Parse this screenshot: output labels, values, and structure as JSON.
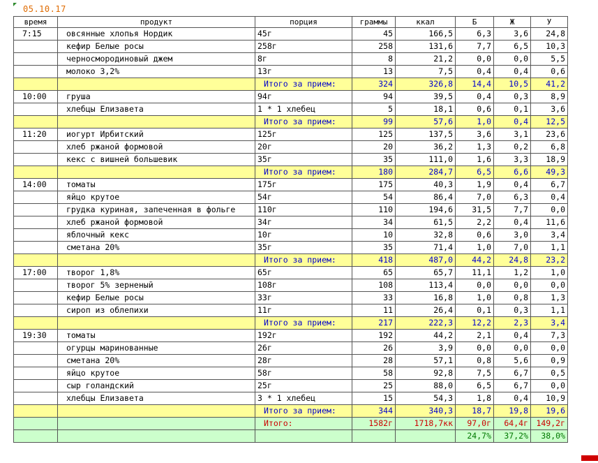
{
  "sheet": {
    "date": "05.10.17",
    "headers": [
      "время",
      "продукт",
      "порция",
      "граммы",
      "ккал",
      "Б",
      "Ж",
      "У"
    ],
    "subtotal_label": "Итого за прием:",
    "meals": [
      {
        "time": "7:15",
        "items": [
          {
            "product": "овсянные хлопья Нордик",
            "portion": "45г",
            "grams": "45",
            "kcal": "166,5",
            "b": "6,3",
            "zh": "3,6",
            "u": "24,8"
          },
          {
            "product": "кефир Белые росы",
            "portion": "258г",
            "grams": "258",
            "kcal": "131,6",
            "b": "7,7",
            "zh": "6,5",
            "u": "10,3"
          },
          {
            "product": "черносмородиновый джем",
            "portion": "8г",
            "grams": "8",
            "kcal": "21,2",
            "b": "0,0",
            "zh": "0,0",
            "u": "5,5"
          },
          {
            "product": "молоко 3,2%",
            "portion": "13г",
            "grams": "13",
            "kcal": "7,5",
            "b": "0,4",
            "zh": "0,4",
            "u": "0,6"
          }
        ],
        "total": {
          "grams": "324",
          "kcal": "326,8",
          "b": "14,4",
          "zh": "10,5",
          "u": "41,2"
        }
      },
      {
        "time": "10:00",
        "items": [
          {
            "product": "груша",
            "portion": "94г",
            "grams": "94",
            "kcal": "39,5",
            "b": "0,4",
            "zh": "0,3",
            "u": "8,9"
          },
          {
            "product": "хлебцы Елизавета",
            "portion": "1 * 1 хлебец",
            "grams": "5",
            "kcal": "18,1",
            "b": "0,6",
            "zh": "0,1",
            "u": "3,6"
          }
        ],
        "total": {
          "grams": "99",
          "kcal": "57,6",
          "b": "1,0",
          "zh": "0,4",
          "u": "12,5"
        }
      },
      {
        "time": "11:20",
        "items": [
          {
            "product": "иогурт Ирбитский",
            "portion": "125г",
            "grams": "125",
            "kcal": "137,5",
            "b": "3,6",
            "zh": "3,1",
            "u": "23,6"
          },
          {
            "product": "хлеб ржаной формовой",
            "portion": "20г",
            "grams": "20",
            "kcal": "36,2",
            "b": "1,3",
            "zh": "0,2",
            "u": "6,8"
          },
          {
            "product": "кекс с вишней большевик",
            "portion": "35г",
            "grams": "35",
            "kcal": "111,0",
            "b": "1,6",
            "zh": "3,3",
            "u": "18,9"
          }
        ],
        "total": {
          "grams": "180",
          "kcal": "284,7",
          "b": "6,5",
          "zh": "6,6",
          "u": "49,3"
        }
      },
      {
        "time": "14:00",
        "items": [
          {
            "product": "томаты",
            "portion": "175г",
            "grams": "175",
            "kcal": "40,3",
            "b": "1,9",
            "zh": "0,4",
            "u": "6,7"
          },
          {
            "product": "яйцо крутое",
            "portion": "54г",
            "grams": "54",
            "kcal": "86,4",
            "b": "7,0",
            "zh": "6,3",
            "u": "0,4"
          },
          {
            "product": "грудка куриная, запеченная в фольге",
            "portion": "110г",
            "grams": "110",
            "kcal": "194,6",
            "b": "31,5",
            "zh": "7,7",
            "u": "0,0"
          },
          {
            "product": "хлеб ржаной формовой",
            "portion": "34г",
            "grams": "34",
            "kcal": "61,5",
            "b": "2,2",
            "zh": "0,4",
            "u": "11,6"
          },
          {
            "product": "яблочный кекс",
            "portion": "10г",
            "grams": "10",
            "kcal": "32,8",
            "b": "0,6",
            "zh": "3,0",
            "u": "3,4"
          },
          {
            "product": "сметана 20%",
            "portion": "35г",
            "grams": "35",
            "kcal": "71,4",
            "b": "1,0",
            "zh": "7,0",
            "u": "1,1"
          }
        ],
        "total": {
          "grams": "418",
          "kcal": "487,0",
          "b": "44,2",
          "zh": "24,8",
          "u": "23,2"
        }
      },
      {
        "time": "17:00",
        "items": [
          {
            "product": "творог 1,8%",
            "portion": "65г",
            "grams": "65",
            "kcal": "65,7",
            "b": "11,1",
            "zh": "1,2",
            "u": "1,0"
          },
          {
            "product": "творог 5% зерненый",
            "portion": "108г",
            "grams": "108",
            "kcal": "113,4",
            "b": "0,0",
            "zh": "0,0",
            "u": "0,0"
          },
          {
            "product": "кефир Белые росы",
            "portion": "33г",
            "grams": "33",
            "kcal": "16,8",
            "b": "1,0",
            "zh": "0,8",
            "u": "1,3"
          },
          {
            "product": "сироп из облепихи",
            "portion": "11г",
            "grams": "11",
            "kcal": "26,4",
            "b": "0,1",
            "zh": "0,3",
            "u": "1,1"
          }
        ],
        "total": {
          "grams": "217",
          "kcal": "222,3",
          "b": "12,2",
          "zh": "2,3",
          "u": "3,4"
        }
      },
      {
        "time": "19:30",
        "items": [
          {
            "product": "томаты",
            "portion": "192г",
            "grams": "192",
            "kcal": "44,2",
            "b": "2,1",
            "zh": "0,4",
            "u": "7,3"
          },
          {
            "product": "огурцы маринованные",
            "portion": "26г",
            "grams": "26",
            "kcal": "3,9",
            "b": "0,0",
            "zh": "0,0",
            "u": "0,0"
          },
          {
            "product": "сметана 20%",
            "portion": "28г",
            "grams": "28",
            "kcal": "57,1",
            "b": "0,8",
            "zh": "5,6",
            "u": "0,9"
          },
          {
            "product": "яйцо крутое",
            "portion": "58г",
            "grams": "58",
            "kcal": "92,8",
            "b": "7,5",
            "zh": "6,7",
            "u": "0,5"
          },
          {
            "product": "сыр голандский",
            "portion": "25г",
            "grams": "25",
            "kcal": "88,0",
            "b": "6,5",
            "zh": "6,7",
            "u": "0,0"
          },
          {
            "product": "хлебцы Елизавета",
            "portion": "3 * 1 хлебец",
            "grams": "15",
            "kcal": "54,3",
            "b": "1,8",
            "zh": "0,4",
            "u": "10,9"
          }
        ],
        "total": {
          "grams": "344",
          "kcal": "340,3",
          "b": "18,7",
          "zh": "19,8",
          "u": "19,6"
        }
      }
    ],
    "grand_total": {
      "label": "Итого:",
      "grams": "1582г",
      "kcal": "1718,7кк",
      "b": "97,0г",
      "zh": "64,4г",
      "u": "149,2г"
    },
    "percent": {
      "b": "24,7%",
      "zh": "37,2%",
      "u": "38,0%"
    },
    "colors": {
      "subtotal_bg": "#ffff99",
      "subtotal_text": "#0000cc",
      "total_bg": "#ccffcc",
      "total_text": "#cc0000",
      "percent_text": "#007700",
      "date_text": "#e06b00"
    }
  }
}
